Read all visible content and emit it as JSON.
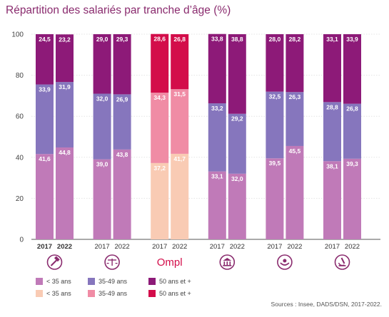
{
  "title": "Répartition des salariés par tranche d’âge (%)",
  "source": "Sources : Insee, DADS/DSN, 2017-2022.",
  "colors": {
    "young": "#c07ab8",
    "mid": "#8676bd",
    "old": "#8d1a78",
    "ompl_young": "#f9cbb4",
    "ompl_mid": "#f08ca5",
    "ompl_old": "#d30d4a",
    "grid": "#e4e4e4",
    "axis": "#555555",
    "icon": "#8a2b6e"
  },
  "chart_data": {
    "type": "bar",
    "stacked": true,
    "ylim": [
      0,
      100
    ],
    "yticks": [
      0,
      20,
      40,
      60,
      80,
      100
    ],
    "grid": true,
    "groups": [
      {
        "icon": "gavel-icon",
        "bold": true,
        "highlight": false,
        "bars": [
          {
            "year": "2017",
            "values": [
              41.6,
              33.9,
              24.5
            ],
            "labels": [
              "41,6",
              "33,9",
              "24,5"
            ]
          },
          {
            "year": "2022",
            "values": [
              44.8,
              31.9,
              23.2
            ],
            "labels": [
              "44,8",
              "31,9",
              "23,2"
            ]
          }
        ]
      },
      {
        "icon": "scales-icon",
        "bold": false,
        "highlight": false,
        "bars": [
          {
            "year": "2017",
            "values": [
              39.0,
              32.0,
              29.0
            ],
            "labels": [
              "39,0",
              "32,0",
              "29,0"
            ]
          },
          {
            "year": "2022",
            "values": [
              43.8,
              26.9,
              29.3
            ],
            "labels": [
              "43,8",
              "26,9",
              "29,3"
            ]
          }
        ]
      },
      {
        "icon": "ompl-logo",
        "logo_text": "Ompl",
        "bold": false,
        "highlight": true,
        "bars": [
          {
            "year": "2017",
            "values": [
              37.2,
              34.3,
              28.6
            ],
            "labels": [
              "37,2",
              "34,3",
              "28,6"
            ]
          },
          {
            "year": "2022",
            "values": [
              41.7,
              31.5,
              26.8
            ],
            "labels": [
              "41,7",
              "31,5",
              "26,8"
            ]
          }
        ]
      },
      {
        "icon": "bank-icon",
        "bold": false,
        "highlight": false,
        "bars": [
          {
            "year": "2017",
            "values": [
              33.1,
              33.2,
              33.8
            ],
            "labels": [
              "33,1",
              "33,2",
              "33,8"
            ]
          },
          {
            "year": "2022",
            "values": [
              32.0,
              29.2,
              38.8
            ],
            "labels": [
              "32,0",
              "29,2",
              "38,8"
            ]
          }
        ]
      },
      {
        "icon": "hands-icon",
        "bold": false,
        "highlight": false,
        "bars": [
          {
            "year": "2017",
            "values": [
              39.5,
              32.5,
              28.0
            ],
            "labels": [
              "39,5",
              "32,5",
              "28,0"
            ]
          },
          {
            "year": "2022",
            "values": [
              45.5,
              26.3,
              28.2
            ],
            "labels": [
              "45,5",
              "26,3",
              "28,2"
            ]
          }
        ]
      },
      {
        "icon": "microscope-icon",
        "bold": false,
        "highlight": false,
        "bars": [
          {
            "year": "2017",
            "values": [
              38.1,
              28.8,
              33.1
            ],
            "labels": [
              "38,1",
              "28,8",
              "33,1"
            ]
          },
          {
            "year": "2022",
            "values": [
              39.3,
              26.8,
              33.9
            ],
            "labels": [
              "39,3",
              "26,8",
              "33,9"
            ]
          }
        ]
      }
    ],
    "legend": {
      "row1": [
        "< 35 ans",
        "35-49 ans",
        "50 ans et +"
      ],
      "row2": [
        "< 35 ans",
        "35-49 ans",
        "50 ans et +"
      ]
    }
  }
}
